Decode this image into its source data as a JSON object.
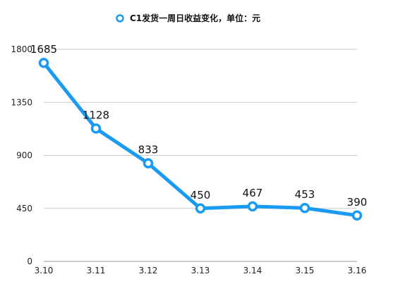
{
  "chart_data": {
    "type": "line",
    "categories": [
      "3.10",
      "3.11",
      "3.12",
      "3.13",
      "3.14",
      "3.15",
      "3.16"
    ],
    "series": [
      {
        "name": "C1发货一周日收益变化，单位：元",
        "values": [
          1685,
          1128,
          833,
          450,
          467,
          453,
          390
        ],
        "color": "#1a9af0"
      }
    ],
    "ylim": [
      0,
      1800
    ],
    "yticks": [
      0,
      450,
      900,
      1350,
      1800
    ],
    "grid": true,
    "legend": "top-center",
    "data_labels": true
  }
}
